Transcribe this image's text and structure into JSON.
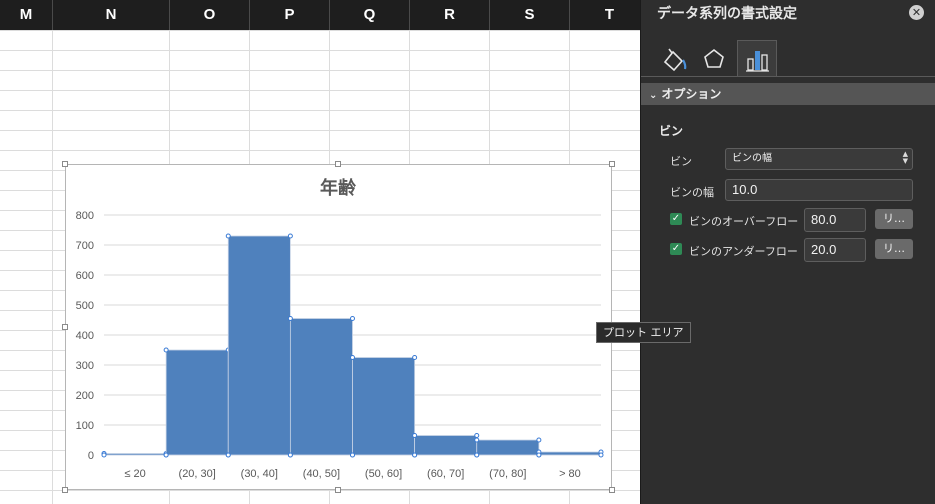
{
  "columns": [
    "M",
    "N",
    "O",
    "P",
    "Q",
    "R",
    "S",
    "T"
  ],
  "tooltip": "プロット エリア",
  "chart_data": {
    "type": "bar",
    "title": "年齢",
    "categories": [
      "≤ 20",
      "(20, 30]",
      "(30, 40]",
      "(40, 50]",
      "(50, 60]",
      "(60, 70]",
      "(70, 80]",
      "> 80"
    ],
    "values": [
      5,
      350,
      730,
      455,
      325,
      65,
      50,
      10
    ],
    "ylim": [
      0,
      800
    ],
    "yticks": [
      0,
      100,
      200,
      300,
      400,
      500,
      600,
      700,
      800
    ],
    "grid": true,
    "color": "#4f81bd"
  },
  "pane": {
    "title": "データ系列の書式設定",
    "tabs": [
      {
        "icon": "fill-line-icon"
      },
      {
        "icon": "effects-pentagon-icon"
      },
      {
        "icon": "series-options-chart-icon"
      }
    ],
    "section": "オプション",
    "bin_heading": "ビン",
    "bin_label": "ビン",
    "bin_select_value": "ビンの幅",
    "bin_width_label": "ビンの幅",
    "bin_width_value": "10.0",
    "overflow_label": "ビンのオーバーフロー",
    "overflow_value": "80.0",
    "underflow_label": "ビンのアンダーフロー",
    "underflow_value": "20.0",
    "reset_label": "リ…"
  }
}
